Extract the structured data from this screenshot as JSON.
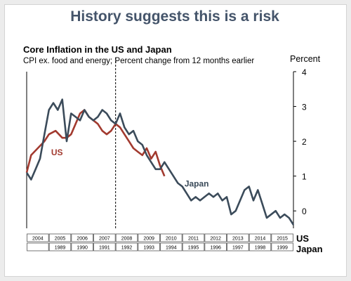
{
  "headline": "History suggests this is a risk",
  "chart_data": {
    "type": "line",
    "title": "Core Inflation in the US and Japan",
    "subtitle": "CPI ex. food and energy; Percent change from 12 months earlier",
    "y_unit": "Percent",
    "ylim": [
      -0.5,
      4
    ],
    "y_ticks": [
      0,
      1,
      2,
      3,
      4
    ],
    "grid": false,
    "bottom_axis": {
      "label": "US",
      "ticks": [
        "2004",
        "2005",
        "2006",
        "2007",
        "2008",
        "2009",
        "2010",
        "2011",
        "2012",
        "2013",
        "2014",
        "2015"
      ],
      "xlim": [
        2004,
        2016
      ]
    },
    "second_axis": {
      "label": "Japan",
      "ticks": [
        "1989",
        "1990",
        "1991",
        "1992",
        "1993",
        "1994",
        "1995",
        "1996",
        "1997",
        "1998",
        "1999"
      ],
      "xlim": [
        1988,
        2000
      ]
    },
    "vertical_marker_x": 2008,
    "series": [
      {
        "name": "US",
        "color": "#a23a2f",
        "x": [
          2004.0,
          2004.2,
          2004.5,
          2004.8,
          2005.0,
          2005.3,
          2005.6,
          2005.8,
          2006.0,
          2006.2,
          2006.4,
          2006.6,
          2006.8,
          2007.0,
          2007.2,
          2007.4,
          2007.6,
          2007.8,
          2008.0,
          2008.2,
          2008.4,
          2008.6,
          2008.8,
          2009.0,
          2009.2,
          2009.4,
          2009.6,
          2009.8,
          2010.0,
          2010.2
        ],
        "y": [
          1.1,
          1.6,
          1.8,
          2.0,
          2.2,
          2.3,
          2.1,
          2.1,
          2.2,
          2.5,
          2.8,
          2.9,
          2.7,
          2.6,
          2.5,
          2.3,
          2.2,
          2.3,
          2.5,
          2.4,
          2.2,
          2.0,
          1.8,
          1.7,
          1.6,
          1.8,
          1.5,
          1.7,
          1.3,
          1.0
        ]
      },
      {
        "name": "Japan",
        "color": "#3b4b5a",
        "x": [
          1988.0,
          1988.2,
          1988.4,
          1988.6,
          1988.8,
          1989.0,
          1989.2,
          1989.4,
          1989.6,
          1989.8,
          1990.0,
          1990.2,
          1990.4,
          1990.6,
          1990.8,
          1991.0,
          1991.2,
          1991.4,
          1991.6,
          1991.8,
          1992.0,
          1992.2,
          1992.4,
          1992.6,
          1992.8,
          1993.0,
          1993.2,
          1993.4,
          1993.6,
          1993.8,
          1994.0,
          1994.2,
          1994.4,
          1994.6,
          1994.8,
          1995.0,
          1995.2,
          1995.4,
          1995.6,
          1995.8,
          1996.0,
          1996.2,
          1996.4,
          1996.6,
          1996.8,
          1997.0,
          1997.2,
          1997.4,
          1997.6,
          1997.8,
          1998.0,
          1998.2,
          1998.4,
          1998.6,
          1998.8,
          1999.0,
          1999.2,
          1999.4,
          1999.6,
          1999.8,
          2000.0
        ],
        "y": [
          1.1,
          0.9,
          1.2,
          1.5,
          2.2,
          2.9,
          3.1,
          2.9,
          3.2,
          2.0,
          2.8,
          2.7,
          2.6,
          2.9,
          2.7,
          2.6,
          2.7,
          2.9,
          2.8,
          2.6,
          2.5,
          2.8,
          2.4,
          2.2,
          2.3,
          2.0,
          1.9,
          1.6,
          1.4,
          1.2,
          1.2,
          1.4,
          1.2,
          1.0,
          0.8,
          0.7,
          0.5,
          0.3,
          0.4,
          0.3,
          0.4,
          0.5,
          0.4,
          0.5,
          0.3,
          0.4,
          -0.1,
          0.0,
          0.3,
          0.6,
          0.7,
          0.3,
          0.6,
          0.2,
          -0.2,
          -0.1,
          0.0,
          -0.2,
          -0.1,
          -0.2,
          -0.4
        ]
      }
    ],
    "annotations": [
      {
        "text": "US",
        "x": 2005.1,
        "y": 1.6,
        "color": "#a23a2f"
      },
      {
        "text": "Japan",
        "x": 1995.1,
        "y": 0.7,
        "color": "#3b4b5a"
      }
    ]
  }
}
